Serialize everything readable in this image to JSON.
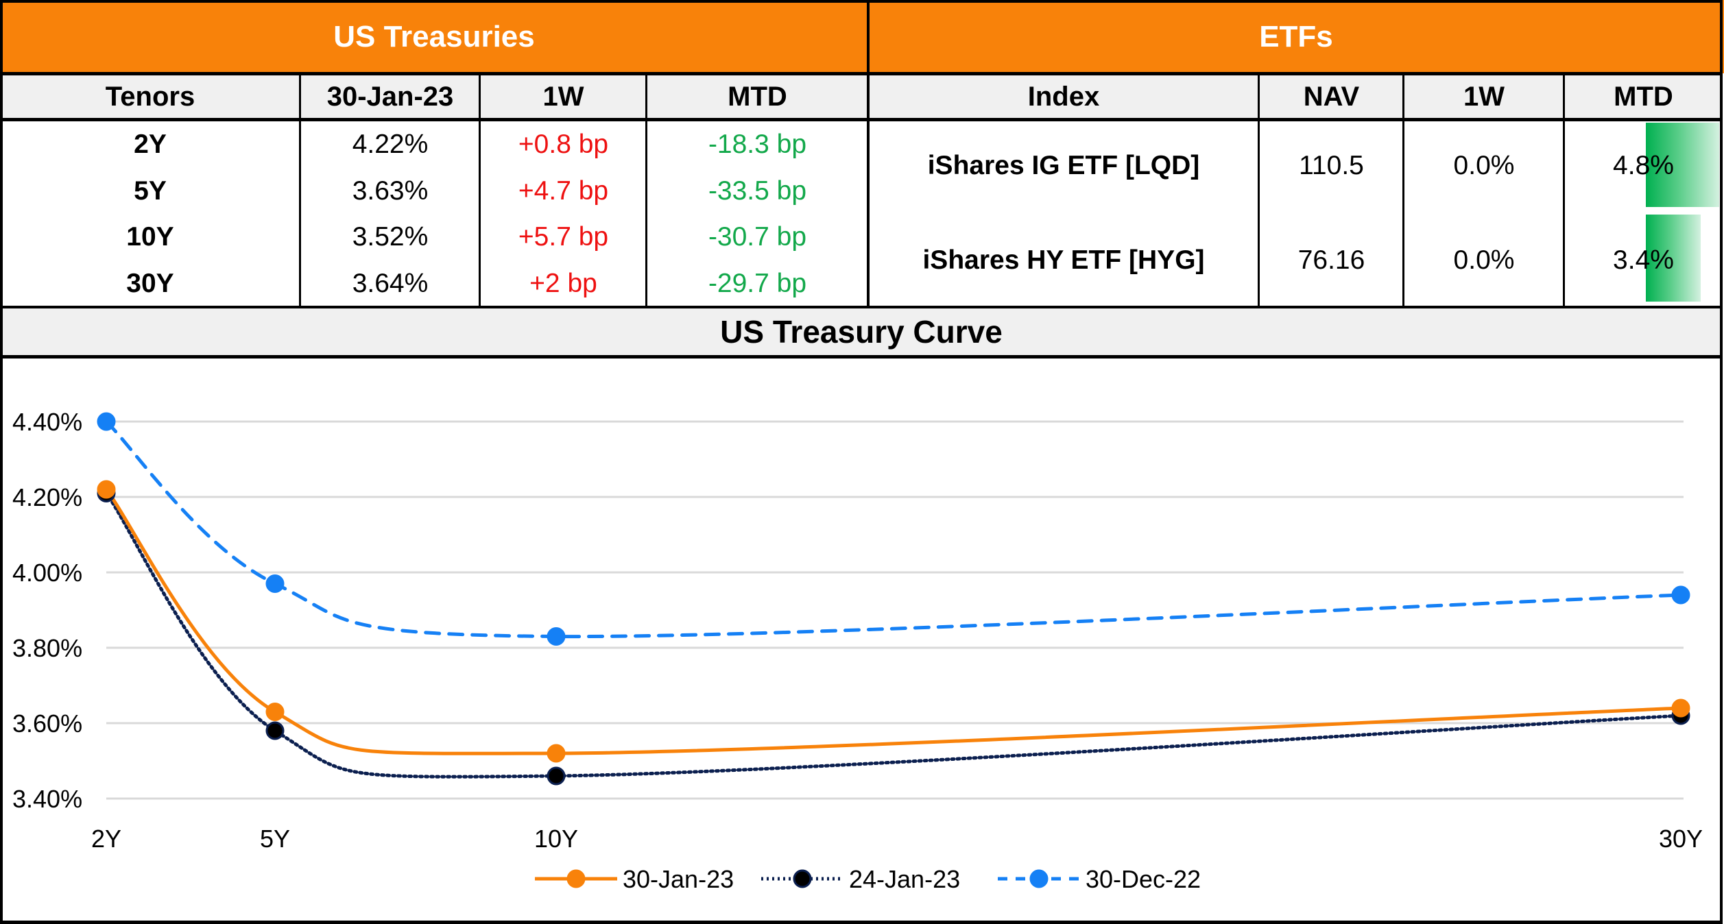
{
  "treasuries": {
    "title": "US Treasuries",
    "headers": [
      "Tenors",
      "30-Jan-23",
      "1W",
      "MTD"
    ],
    "rows": [
      {
        "tenor": "2Y",
        "yield": "4.22%",
        "w1": "+0.8 bp",
        "mtd": "-18.3 bp"
      },
      {
        "tenor": "5Y",
        "yield": "3.63%",
        "w1": "+4.7 bp",
        "mtd": "-33.5 bp"
      },
      {
        "tenor": "10Y",
        "yield": "3.52%",
        "w1": "+5.7 bp",
        "mtd": "-30.7 bp"
      },
      {
        "tenor": "30Y",
        "yield": "3.64%",
        "w1": "+2 bp",
        "mtd": "-29.7 bp"
      }
    ]
  },
  "etfs": {
    "title": "ETFs",
    "headers": [
      "Index",
      "NAV",
      "1W",
      "MTD"
    ],
    "rows": [
      {
        "index": "iShares IG ETF [LQD]",
        "nav": "110.5",
        "w1": "0.0%",
        "mtd": "4.8%",
        "mtd_value": 4.8
      },
      {
        "index": "iShares HY ETF [HYG]",
        "nav": "76.16",
        "w1": "0.0%",
        "mtd": "3.4%",
        "mtd_value": 3.4
      }
    ]
  },
  "colors": {
    "header_orange": "#F8820A",
    "positive_red": "#EE1111",
    "negative_green": "#12A84A",
    "databar_green": "#00B050",
    "series_30jan": "#F8820A",
    "series_24jan": "#0B1F4F",
    "series_30dec": "#1580F5"
  },
  "chart_data": {
    "type": "line",
    "title": "US Treasury Curve",
    "xlabel": "",
    "ylabel": "",
    "categories": [
      "2Y",
      "5Y",
      "10Y",
      "30Y"
    ],
    "x": [
      2,
      5,
      10,
      30
    ],
    "y_ticks": [
      "4.40%",
      "4.20%",
      "4.00%",
      "3.80%",
      "3.60%",
      "3.40%"
    ],
    "y_tick_values": [
      4.4,
      4.2,
      4.0,
      3.8,
      3.6,
      3.4
    ],
    "ylim": [
      3.4,
      4.4
    ],
    "grid": true,
    "legend_position": "bottom",
    "series": [
      {
        "name": "30-Jan-23",
        "values": [
          4.22,
          3.63,
          3.52,
          3.64
        ],
        "style": "solid"
      },
      {
        "name": "24-Jan-23",
        "values": [
          4.21,
          3.58,
          3.46,
          3.62
        ],
        "style": "dotted"
      },
      {
        "name": "30-Dec-22",
        "values": [
          4.4,
          3.97,
          3.83,
          3.94
        ],
        "style": "dashed"
      }
    ]
  }
}
